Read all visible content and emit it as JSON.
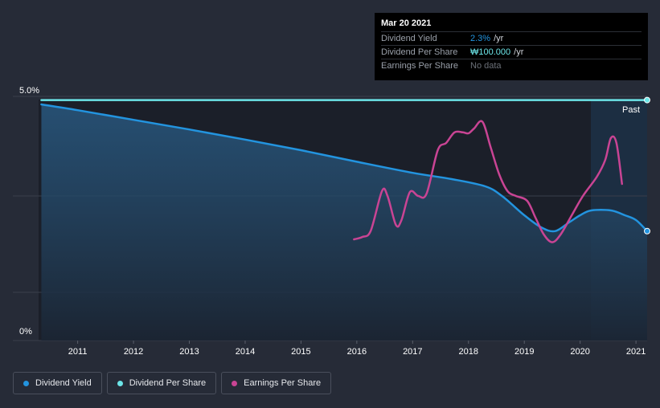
{
  "chart_data": {
    "type": "line",
    "y_axis": {
      "top_label": "5.0%",
      "bottom_label": "0%",
      "ylim": [
        0,
        5.0
      ]
    },
    "x_axis": {
      "tick_labels": [
        "2011",
        "2012",
        "2013",
        "2014",
        "2015",
        "2016",
        "2017",
        "2018",
        "2019",
        "2020",
        "2021"
      ],
      "xlim": [
        2010.3,
        2021.2
      ]
    },
    "past_label": "Past",
    "series": [
      {
        "name": "Dividend Yield",
        "color": "#2394df",
        "points": [
          [
            2010.35,
            4.9
          ],
          [
            2011.0,
            4.78
          ],
          [
            2012.0,
            4.58
          ],
          [
            2013.0,
            4.38
          ],
          [
            2014.0,
            4.17
          ],
          [
            2015.0,
            3.95
          ],
          [
            2016.0,
            3.71
          ],
          [
            2017.0,
            3.48
          ],
          [
            2017.7,
            3.35
          ],
          [
            2018.3,
            3.2
          ],
          [
            2018.6,
            3.0
          ],
          [
            2019.0,
            2.6
          ],
          [
            2019.3,
            2.35
          ],
          [
            2019.55,
            2.27
          ],
          [
            2019.8,
            2.45
          ],
          [
            2020.0,
            2.6
          ],
          [
            2020.2,
            2.7
          ],
          [
            2020.55,
            2.7
          ],
          [
            2020.8,
            2.6
          ],
          [
            2021.0,
            2.5
          ],
          [
            2021.2,
            2.27
          ]
        ]
      },
      {
        "name": "Dividend Per Share",
        "color": "#6ce5e8",
        "points": [
          [
            2010.35,
            4.99
          ],
          [
            2021.2,
            4.99
          ]
        ]
      },
      {
        "name": "Earnings Per Share",
        "color": "#c94494",
        "points": [
          [
            2015.95,
            2.1
          ],
          [
            2016.1,
            2.15
          ],
          [
            2016.25,
            2.28
          ],
          [
            2016.45,
            3.1
          ],
          [
            2016.55,
            3.0
          ],
          [
            2016.7,
            2.4
          ],
          [
            2016.8,
            2.5
          ],
          [
            2016.95,
            3.08
          ],
          [
            2017.1,
            3.0
          ],
          [
            2017.25,
            3.05
          ],
          [
            2017.45,
            3.95
          ],
          [
            2017.6,
            4.1
          ],
          [
            2017.75,
            4.32
          ],
          [
            2017.9,
            4.32
          ],
          [
            2018.0,
            4.3
          ],
          [
            2018.1,
            4.4
          ],
          [
            2018.25,
            4.54
          ],
          [
            2018.4,
            4.0
          ],
          [
            2018.55,
            3.45
          ],
          [
            2018.7,
            3.1
          ],
          [
            2018.85,
            3.0
          ],
          [
            2019.05,
            2.9
          ],
          [
            2019.2,
            2.55
          ],
          [
            2019.35,
            2.2
          ],
          [
            2019.5,
            2.04
          ],
          [
            2019.65,
            2.2
          ],
          [
            2019.85,
            2.6
          ],
          [
            2020.05,
            3.0
          ],
          [
            2020.3,
            3.4
          ],
          [
            2020.45,
            3.75
          ],
          [
            2020.55,
            4.2
          ],
          [
            2020.65,
            4.1
          ],
          [
            2020.75,
            3.25
          ]
        ]
      }
    ]
  },
  "tooltip": {
    "date": "Mar 20 2021",
    "rows": [
      {
        "label": "Dividend Yield",
        "value": "2.3%",
        "unit": "/yr"
      },
      {
        "label": "Dividend Per Share",
        "value": "₩100.000",
        "unit": "/yr"
      },
      {
        "label": "Earnings Per Share",
        "value": "No data",
        "unit": ""
      }
    ]
  },
  "legend": [
    {
      "label": "Dividend Yield",
      "color": "#2394df"
    },
    {
      "label": "Dividend Per Share",
      "color": "#6ce5e8"
    },
    {
      "label": "Earnings Per Share",
      "color": "#c94494"
    }
  ]
}
